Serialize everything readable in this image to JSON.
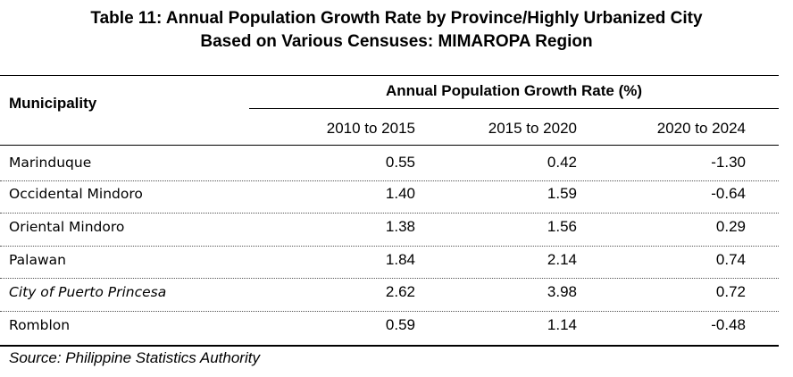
{
  "title_line1": "Table 11: Annual Population Growth Rate by Province/Highly Urbanized City",
  "title_line2": "Based on Various Censuses: MIMAROPA Region",
  "header": {
    "first_col": "Municipality",
    "group": "Annual Population Growth Rate (%)",
    "periods": [
      "2010 to 2015",
      "2015 to 2020",
      "2020 to 2024"
    ]
  },
  "rows": [
    {
      "name": "Marinduque",
      "values": [
        "0.55",
        "0.42",
        "-1.30"
      ],
      "italic": false
    },
    {
      "name": "Occidental Mindoro",
      "values": [
        "1.40",
        "1.59",
        "-0.64"
      ],
      "italic": false
    },
    {
      "name": "Oriental Mindoro",
      "values": [
        "1.38",
        "1.56",
        "0.29"
      ],
      "italic": false
    },
    {
      "name": "Palawan",
      "values": [
        "1.84",
        "2.14",
        "0.74"
      ],
      "italic": false
    },
    {
      "name": "City of Puerto Princesa",
      "values": [
        "2.62",
        "3.98",
        "0.72"
      ],
      "italic": true
    },
    {
      "name": "Romblon",
      "values": [
        "0.59",
        "1.14",
        "-0.48"
      ],
      "italic": false
    }
  ],
  "source": "Source: Philippine Statistics Authority"
}
